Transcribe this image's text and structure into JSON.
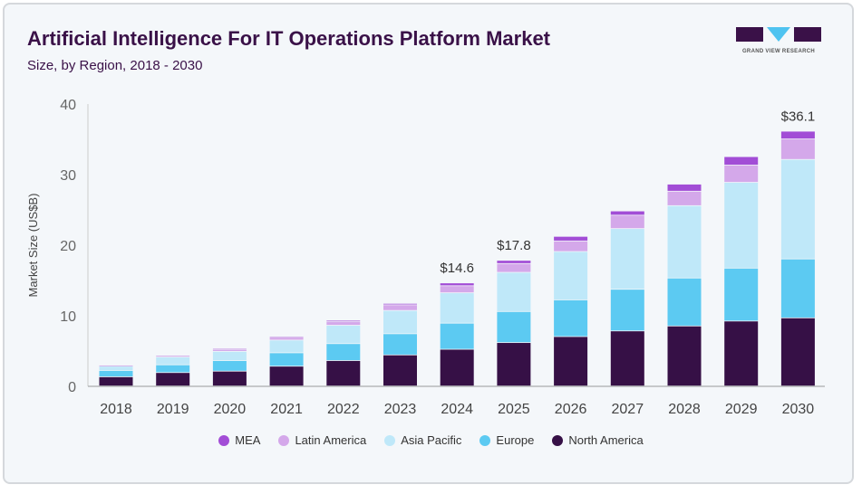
{
  "title": "Artificial Intelligence For IT Operations Platform Market",
  "subtitle": "Size, by Region, 2018 - 2030",
  "logo_text": "GRAND VIEW RESEARCH",
  "chart_data": {
    "type": "bar",
    "stacked": true,
    "ylabel": "Market Size (US$B)",
    "ylim": [
      0,
      40
    ],
    "yticks": [
      0,
      10,
      20,
      30,
      40
    ],
    "grid": false,
    "legend_position": "bottom",
    "categories": [
      "2018",
      "2019",
      "2020",
      "2021",
      "2022",
      "2023",
      "2024",
      "2025",
      "2026",
      "2027",
      "2028",
      "2029",
      "2030"
    ],
    "series": [
      {
        "name": "North America",
        "color": "#361046",
        "values": [
          1.3,
          1.9,
          2.1,
          2.8,
          3.6,
          4.4,
          5.2,
          6.15,
          7.0,
          7.8,
          8.5,
          9.2,
          9.65
        ]
      },
      {
        "name": "Europe",
        "color": "#5ccaf2",
        "values": [
          0.9,
          1.1,
          1.5,
          1.9,
          2.4,
          3.0,
          3.7,
          4.4,
          5.2,
          5.9,
          6.8,
          7.5,
          8.35
        ]
      },
      {
        "name": "Asia Pacific",
        "color": "#bfe8f9",
        "values": [
          0.6,
          1.1,
          1.3,
          1.8,
          2.6,
          3.3,
          4.3,
          5.55,
          6.85,
          8.6,
          10.25,
          12.15,
          14.1
        ]
      },
      {
        "name": "Latin America",
        "color": "#d4a8ea",
        "values": [
          0.1,
          0.15,
          0.3,
          0.4,
          0.5,
          0.8,
          1.0,
          1.25,
          1.5,
          1.9,
          2.05,
          2.45,
          2.9
        ]
      },
      {
        "name": "MEA",
        "color": "#a24dd6",
        "values": [
          0.05,
          0.1,
          0.1,
          0.15,
          0.2,
          0.2,
          0.4,
          0.45,
          0.65,
          0.6,
          1.0,
          1.2,
          1.1
        ]
      }
    ],
    "annotations": [
      {
        "category": "2024",
        "text": "$14.6"
      },
      {
        "category": "2025",
        "text": "$17.8"
      },
      {
        "category": "2030",
        "text": "$36.1"
      }
    ],
    "legend_order": [
      "MEA",
      "Latin America",
      "Asia Pacific",
      "Europe",
      "North America"
    ]
  }
}
